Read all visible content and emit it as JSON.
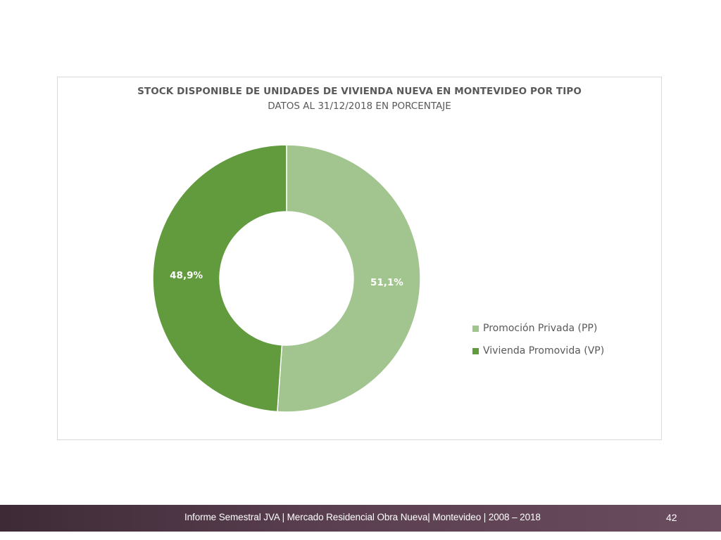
{
  "chart_data": {
    "type": "pie",
    "variant": "donut",
    "title": "STOCK DISPONIBLE DE UNIDADES DE VIVIENDA NUEVA EN MONTEVIDEO POR TIPO",
    "subtitle": "DATOS AL 31/12/2018 EN PORCENTAJE",
    "series": [
      {
        "name": "Promoción Privada (PP)",
        "value": 51.1,
        "label": "51,1%",
        "color": "#a2c48f"
      },
      {
        "name": "Vivienda Promovida (VP)",
        "value": 48.9,
        "label": "48,9%",
        "color": "#629a3e"
      }
    ],
    "legend_position": "right"
  },
  "footer": {
    "text": "Informe Semestral JVA | Mercado Residencial Obra Nueva| Montevideo | 2008 – 2018",
    "page_number": "42"
  }
}
